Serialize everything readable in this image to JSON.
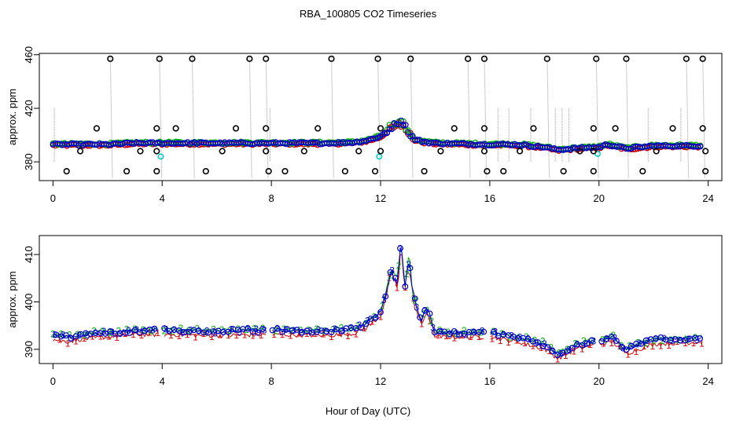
{
  "title": "RBA_100805  CO2 Timeseries",
  "xlabel": "Hour of Day (UTC)",
  "colors": {
    "black": "#000000",
    "red": "#cc0000",
    "green": "#00b000",
    "blue": "#0000cc",
    "cyan": "#00cccc",
    "grey": "#999999"
  },
  "chart_data": [
    {
      "type": "scatter",
      "ylabel": "approx. ppm",
      "xlim": [
        -0.5,
        24.5
      ],
      "ylim": [
        366,
        461
      ],
      "xticks": [
        0,
        4,
        8,
        12,
        16,
        20,
        24
      ],
      "yticks": [
        380,
        420,
        460
      ],
      "outliers_high": [
        2.1,
        3.9,
        5.1,
        7.2,
        7.8,
        10.2,
        11.9,
        13.1,
        15.2,
        15.8,
        18.1,
        19.9,
        21.0,
        23.2,
        23.8
      ],
      "outliers_low": [
        0.5,
        2.7,
        3.8,
        5.6,
        7.9,
        8.5,
        10.7,
        11.8,
        13.6,
        15.9,
        16.5,
        18.7,
        19.8,
        21.6,
        23.9
      ],
      "outliers_mid": [
        1.6,
        3.8,
        4.5,
        6.7,
        7.8,
        9.7,
        12.0,
        14.7,
        15.8,
        17.6,
        19.8,
        20.6,
        22.7,
        23.8
      ],
      "outliers_low2": [
        1.0,
        3.2,
        3.8,
        6.2,
        7.8,
        9.2,
        11.2,
        12.0,
        14.2,
        15.8,
        17.1,
        19.3,
        19.8,
        22.1,
        23.9
      ],
      "cyan_points": [
        [
          3.95,
          384
        ],
        [
          11.95,
          384
        ],
        [
          19.95,
          386
        ]
      ],
      "series_anchor": [
        [
          0,
          393
        ],
        [
          1,
          393
        ],
        [
          2,
          393
        ],
        [
          3,
          394
        ],
        [
          4,
          394
        ],
        [
          6,
          394
        ],
        [
          8,
          394
        ],
        [
          10,
          394
        ],
        [
          11,
          394.5
        ],
        [
          11.5,
          396
        ],
        [
          12,
          399
        ],
        [
          12.3,
          404
        ],
        [
          12.6,
          408
        ],
        [
          12.8,
          410
        ],
        [
          13.0,
          404
        ],
        [
          13.2,
          397
        ],
        [
          13.6,
          395
        ],
        [
          14,
          394
        ],
        [
          16,
          393
        ],
        [
          17,
          393
        ],
        [
          18,
          391
        ],
        [
          18.5,
          389
        ],
        [
          19,
          390
        ],
        [
          20,
          391
        ],
        [
          20.3,
          393
        ],
        [
          21,
          390
        ],
        [
          22,
          392
        ],
        [
          24,
          392
        ]
      ]
    },
    {
      "type": "scatter",
      "ylabel": "approx. ppm",
      "xlim": [
        -0.5,
        24.5
      ],
      "ylim": [
        387,
        414
      ],
      "xticks": [
        0,
        4,
        8,
        12,
        16,
        20,
        24
      ],
      "yticks": [
        390,
        400,
        410
      ],
      "symbols": [
        "1",
        "2",
        "3"
      ],
      "series_anchor": [
        [
          0,
          393
        ],
        [
          0.5,
          392.5
        ],
        [
          1,
          393
        ],
        [
          2,
          393.5
        ],
        [
          3,
          394
        ],
        [
          4,
          394
        ],
        [
          6,
          393.8
        ],
        [
          8,
          394
        ],
        [
          10,
          393.8
        ],
        [
          11,
          394.2
        ],
        [
          11.5,
          395.5
        ],
        [
          12,
          398
        ],
        [
          12.2,
          402
        ],
        [
          12.4,
          407
        ],
        [
          12.6,
          404
        ],
        [
          12.75,
          412
        ],
        [
          12.9,
          404
        ],
        [
          13.05,
          409
        ],
        [
          13.2,
          401
        ],
        [
          13.5,
          396
        ],
        [
          13.7,
          399
        ],
        [
          14,
          393.5
        ],
        [
          16,
          393.5
        ],
        [
          17,
          392.5
        ],
        [
          18,
          391
        ],
        [
          18.5,
          389
        ],
        [
          19.2,
          391
        ],
        [
          20,
          392
        ],
        [
          20.5,
          392.5
        ],
        [
          21,
          390
        ],
        [
          22,
          392
        ],
        [
          24,
          392.5
        ]
      ],
      "data_gaps": [
        [
          3.9,
          4.05
        ],
        [
          7.8,
          8.0
        ],
        [
          15.8,
          16.0
        ],
        [
          19.8,
          20.0
        ]
      ]
    }
  ]
}
